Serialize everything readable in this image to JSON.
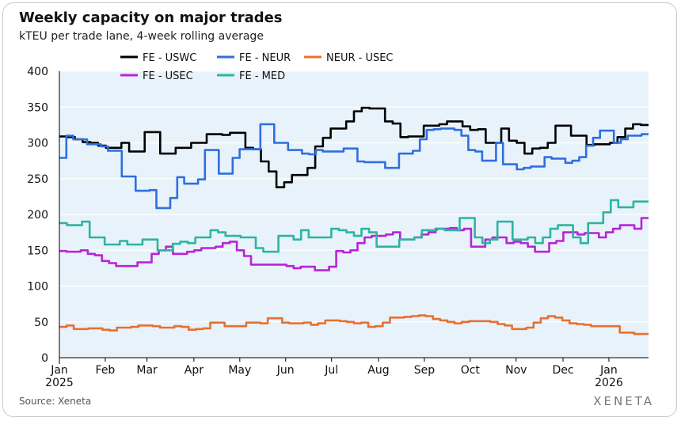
{
  "source": "Source: Xeneta",
  "brand": "XENETA",
  "colors": {
    "plot_background": "#e8f2fb"
  },
  "chart_data": {
    "type": "line",
    "title": "Weekly capacity on major trades",
    "subtitle": "kTEU per trade lane, 4-week rolling average",
    "xlabel": "",
    "ylabel": "",
    "x_range": [
      0,
      56.5
    ],
    "ylim": [
      0,
      400
    ],
    "y_ticks": [
      0,
      50,
      100,
      150,
      200,
      250,
      300,
      350,
      400
    ],
    "x_ticks": [
      {
        "week": 0,
        "label": "Jan",
        "year": "2025"
      },
      {
        "week": 4.4,
        "label": "Feb"
      },
      {
        "week": 8.4,
        "label": "Mar"
      },
      {
        "week": 12.9,
        "label": "Apr"
      },
      {
        "week": 17.3,
        "label": "May"
      },
      {
        "week": 21.7,
        "label": "Jun"
      },
      {
        "week": 26.1,
        "label": "Jul"
      },
      {
        "week": 30.6,
        "label": "Aug"
      },
      {
        "week": 35,
        "label": "Sep"
      },
      {
        "week": 39.4,
        "label": "Oct"
      },
      {
        "week": 43.8,
        "label": "Nov"
      },
      {
        "week": 48.3,
        "label": "Dec"
      },
      {
        "week": 52.7,
        "label": "Jan",
        "year": "2026"
      }
    ],
    "grid": "horizontal",
    "legend_position": "top",
    "series": [
      {
        "name": "FE - USWC",
        "color": "#000000",
        "values": [
          309,
          308,
          305,
          301,
          300,
          296,
          293,
          293,
          300,
          288,
          288,
          315,
          315,
          285,
          285,
          293,
          293,
          300,
          300,
          312,
          312,
          311,
          314,
          314,
          293,
          291,
          274,
          260,
          238,
          245,
          255,
          255,
          265,
          295,
          307,
          320,
          320,
          330,
          344,
          349,
          348,
          348,
          330,
          327,
          308,
          309,
          309,
          324,
          324,
          326,
          330,
          330,
          323,
          318,
          319,
          300,
          300,
          320,
          303,
          300,
          285,
          292,
          293,
          300,
          324,
          324,
          310,
          310,
          297,
          298,
          298,
          300,
          308,
          320,
          326,
          325
        ]
      },
      {
        "name": "FE - NEUR",
        "color": "#2e6fe0",
        "values": [
          279,
          310,
          305,
          305,
          298,
          298,
          295,
          289,
          289,
          253,
          253,
          233,
          233,
          234,
          209,
          209,
          223,
          252,
          243,
          243,
          249,
          290,
          290,
          257,
          257,
          279,
          291,
          291,
          291,
          326,
          326,
          300,
          300,
          290,
          290,
          285,
          284,
          290,
          288,
          288,
          288,
          292,
          292,
          274,
          273,
          273,
          273,
          265,
          265,
          285,
          285,
          289,
          305,
          318,
          319,
          320,
          320,
          318,
          310,
          290,
          288,
          275,
          275,
          300,
          270,
          270,
          263,
          265,
          267,
          267,
          280,
          278,
          278,
          272,
          275,
          280,
          296,
          307,
          317,
          317,
          300,
          305,
          310,
          310,
          312
        ]
      },
      {
        "name": "NEUR - USEC",
        "color": "#e8702f",
        "values": [
          43,
          45,
          40,
          40,
          41,
          41,
          39,
          38,
          42,
          42,
          43,
          45,
          45,
          44,
          42,
          42,
          44,
          43,
          39,
          40,
          41,
          49,
          49,
          44,
          44,
          44,
          49,
          49,
          48,
          55,
          55,
          49,
          48,
          48,
          49,
          46,
          48,
          52,
          52,
          51,
          50,
          48,
          49,
          43,
          44,
          49,
          56,
          56,
          57,
          58,
          59,
          58,
          54,
          52,
          50,
          48,
          50,
          51,
          51,
          51,
          50,
          47,
          45,
          40,
          40,
          42,
          49,
          55,
          58,
          56,
          52,
          48,
          47,
          46,
          44,
          44,
          44,
          44,
          35,
          35,
          33,
          33
        ]
      },
      {
        "name": "FE - USEC",
        "color": "#b823d8",
        "values": [
          149,
          148,
          148,
          150,
          145,
          143,
          135,
          132,
          128,
          128,
          128,
          133,
          133,
          145,
          150,
          155,
          145,
          145,
          148,
          150,
          153,
          153,
          155,
          160,
          162,
          150,
          142,
          130,
          130,
          130,
          130,
          130,
          128,
          125,
          127,
          127,
          122,
          122,
          127,
          149,
          147,
          150,
          160,
          168,
          170,
          170,
          172,
          175,
          165,
          165,
          168,
          172,
          175,
          180,
          180,
          181,
          178,
          180,
          155,
          155,
          165,
          168,
          168,
          160,
          162,
          160,
          155,
          148,
          148,
          160,
          163,
          175,
          175,
          172,
          174,
          174,
          168,
          175,
          180,
          185,
          185,
          180,
          195
        ]
      },
      {
        "name": "FE - MED",
        "color": "#2cb5a0",
        "values": [
          188,
          185,
          185,
          190,
          168,
          168,
          158,
          158,
          163,
          158,
          158,
          165,
          165,
          150,
          150,
          159,
          162,
          160,
          168,
          168,
          178,
          175,
          170,
          170,
          168,
          168,
          153,
          148,
          148,
          170,
          170,
          165,
          178,
          168,
          168,
          168,
          180,
          178,
          175,
          170,
          180,
          175,
          155,
          155,
          155,
          165,
          165,
          168,
          178,
          178,
          180,
          178,
          178,
          195,
          195,
          168,
          160,
          165,
          190,
          190,
          165,
          165,
          168,
          160,
          168,
          180,
          185,
          185,
          168,
          160,
          188,
          188,
          203,
          220,
          210,
          210,
          218,
          218
        ]
      }
    ]
  }
}
